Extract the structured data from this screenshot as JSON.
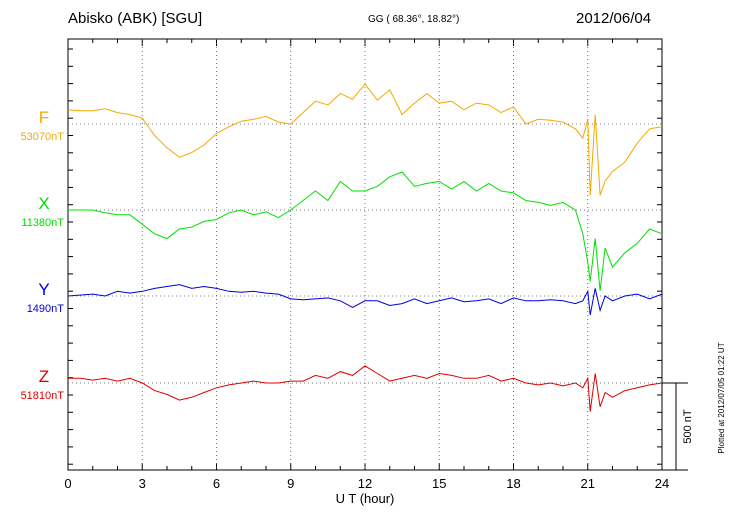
{
  "header": {
    "station": "Abisko (ABK)  [SGU]",
    "coords": "GG ( 68.36°,  18.82°)",
    "date": "2012/06/04"
  },
  "side_note": "Plotted at 2012/07/05 01:22 UT",
  "chart_data": {
    "type": "line",
    "xlabel": "U T (hour)",
    "xlim": [
      0,
      24
    ],
    "xticks": [
      0,
      3,
      6,
      9,
      12,
      15,
      18,
      21,
      24
    ],
    "scale_bar": {
      "label": "500 nT",
      "value_nT": 500
    },
    "series": [
      {
        "name": "F",
        "baseline_label": "53070nT",
        "color": "#f5a800",
        "points": [
          [
            0,
            15
          ],
          [
            0.5,
            14
          ],
          [
            1,
            14
          ],
          [
            1.5,
            16
          ],
          [
            2,
            12
          ],
          [
            2.5,
            10
          ],
          [
            3,
            6
          ],
          [
            3.5,
            -12
          ],
          [
            4,
            -25
          ],
          [
            4.5,
            -35
          ],
          [
            5,
            -30
          ],
          [
            5.5,
            -22
          ],
          [
            6,
            -10
          ],
          [
            6.5,
            -3
          ],
          [
            7,
            3
          ],
          [
            7.5,
            5
          ],
          [
            8,
            8
          ],
          [
            8.5,
            2
          ],
          [
            9,
            0
          ],
          [
            9.5,
            12
          ],
          [
            10,
            24
          ],
          [
            10.5,
            20
          ],
          [
            11,
            32
          ],
          [
            11.5,
            26
          ],
          [
            12,
            42
          ],
          [
            12.5,
            25
          ],
          [
            13,
            36
          ],
          [
            13.5,
            10
          ],
          [
            14,
            22
          ],
          [
            14.5,
            32
          ],
          [
            15,
            22
          ],
          [
            15.5,
            24
          ],
          [
            16,
            15
          ],
          [
            16.5,
            22
          ],
          [
            17,
            20
          ],
          [
            17.5,
            12
          ],
          [
            18,
            18
          ],
          [
            18.5,
            0
          ],
          [
            19,
            5
          ],
          [
            19.5,
            4
          ],
          [
            20,
            2
          ],
          [
            20.5,
            -5
          ],
          [
            20.8,
            -15
          ],
          [
            21,
            5
          ],
          [
            21.1,
            -75
          ],
          [
            21.3,
            10
          ],
          [
            21.5,
            -75
          ],
          [
            21.7,
            -60
          ],
          [
            22,
            -50
          ],
          [
            22.5,
            -40
          ],
          [
            23,
            -20
          ],
          [
            23.5,
            -5
          ],
          [
            24,
            -3
          ]
        ]
      },
      {
        "name": "X",
        "baseline_label": "11380nT",
        "color": "#00e000",
        "points": [
          [
            0,
            0
          ],
          [
            0.5,
            0
          ],
          [
            1,
            0
          ],
          [
            1.5,
            -3
          ],
          [
            2,
            -5
          ],
          [
            2.5,
            -5
          ],
          [
            3,
            -15
          ],
          [
            3.5,
            -25
          ],
          [
            4,
            -30
          ],
          [
            4.5,
            -20
          ],
          [
            5,
            -18
          ],
          [
            5.5,
            -12
          ],
          [
            6,
            -10
          ],
          [
            6.5,
            -3
          ],
          [
            7,
            0
          ],
          [
            7.5,
            -5
          ],
          [
            8,
            -2
          ],
          [
            8.5,
            -8
          ],
          [
            9,
            0
          ],
          [
            9.5,
            10
          ],
          [
            10,
            20
          ],
          [
            10.5,
            10
          ],
          [
            11,
            30
          ],
          [
            11.5,
            20
          ],
          [
            12,
            20
          ],
          [
            12.5,
            25
          ],
          [
            13,
            35
          ],
          [
            13.5,
            40
          ],
          [
            14,
            25
          ],
          [
            14.5,
            28
          ],
          [
            15,
            30
          ],
          [
            15.5,
            22
          ],
          [
            16,
            30
          ],
          [
            16.5,
            20
          ],
          [
            17,
            28
          ],
          [
            17.5,
            20
          ],
          [
            18,
            18
          ],
          [
            18.5,
            10
          ],
          [
            19,
            8
          ],
          [
            19.5,
            5
          ],
          [
            20,
            8
          ],
          [
            20.5,
            0
          ],
          [
            20.8,
            -25
          ],
          [
            21,
            -55
          ],
          [
            21.1,
            -75
          ],
          [
            21.3,
            -30
          ],
          [
            21.5,
            -85
          ],
          [
            21.7,
            -40
          ],
          [
            22,
            -60
          ],
          [
            22.5,
            -45
          ],
          [
            23,
            -35
          ],
          [
            23.5,
            -20
          ],
          [
            24,
            -25
          ]
        ]
      },
      {
        "name": "Y",
        "baseline_label": "1490nT",
        "color": "#0000dd",
        "points": [
          [
            0,
            0
          ],
          [
            1,
            2
          ],
          [
            1.5,
            0
          ],
          [
            2,
            5
          ],
          [
            2.5,
            3
          ],
          [
            3,
            5
          ],
          [
            3.5,
            8
          ],
          [
            4,
            10
          ],
          [
            4.5,
            12
          ],
          [
            5,
            8
          ],
          [
            5.5,
            10
          ],
          [
            6,
            8
          ],
          [
            6.5,
            5
          ],
          [
            7,
            4
          ],
          [
            7.5,
            5
          ],
          [
            8,
            3
          ],
          [
            8.5,
            2
          ],
          [
            9,
            -3
          ],
          [
            9.5,
            -4
          ],
          [
            10,
            -3
          ],
          [
            10.5,
            -2
          ],
          [
            11,
            -5
          ],
          [
            11.5,
            -12
          ],
          [
            12,
            -5
          ],
          [
            12.5,
            -5
          ],
          [
            13,
            -10
          ],
          [
            13.5,
            -8
          ],
          [
            14,
            -3
          ],
          [
            14.5,
            -8
          ],
          [
            15,
            -5
          ],
          [
            15.5,
            -2
          ],
          [
            16,
            -6
          ],
          [
            16.5,
            -5
          ],
          [
            17,
            -3
          ],
          [
            17.5,
            -8
          ],
          [
            18,
            -2
          ],
          [
            18.5,
            -5
          ],
          [
            19,
            -5
          ],
          [
            19.5,
            -4
          ],
          [
            20,
            -5
          ],
          [
            20.5,
            -8
          ],
          [
            20.8,
            -5
          ],
          [
            21,
            5
          ],
          [
            21.1,
            -20
          ],
          [
            21.3,
            8
          ],
          [
            21.5,
            -15
          ],
          [
            21.7,
            0
          ],
          [
            22,
            -5
          ],
          [
            22.5,
            0
          ],
          [
            23,
            2
          ],
          [
            23.5,
            -3
          ],
          [
            24,
            2
          ]
        ]
      },
      {
        "name": "Z",
        "baseline_label": "51810nT",
        "color": "#dd0000",
        "points": [
          [
            0,
            5
          ],
          [
            0.5,
            5
          ],
          [
            1,
            3
          ],
          [
            1.5,
            5
          ],
          [
            2,
            2
          ],
          [
            2.5,
            5
          ],
          [
            3,
            0
          ],
          [
            3.5,
            -8
          ],
          [
            4,
            -12
          ],
          [
            4.5,
            -18
          ],
          [
            5,
            -15
          ],
          [
            5.5,
            -10
          ],
          [
            6,
            -5
          ],
          [
            6.5,
            -2
          ],
          [
            7,
            0
          ],
          [
            7.5,
            2
          ],
          [
            8,
            0
          ],
          [
            8.5,
            0
          ],
          [
            9,
            2
          ],
          [
            9.5,
            2
          ],
          [
            10,
            8
          ],
          [
            10.5,
            5
          ],
          [
            11,
            12
          ],
          [
            11.5,
            8
          ],
          [
            12,
            18
          ],
          [
            12.5,
            10
          ],
          [
            13,
            2
          ],
          [
            13.5,
            5
          ],
          [
            14,
            8
          ],
          [
            14.5,
            5
          ],
          [
            15,
            10
          ],
          [
            15.5,
            8
          ],
          [
            16,
            5
          ],
          [
            16.5,
            5
          ],
          [
            17,
            8
          ],
          [
            17.5,
            2
          ],
          [
            18,
            5
          ],
          [
            18.5,
            0
          ],
          [
            19,
            -2
          ],
          [
            19.5,
            0
          ],
          [
            20,
            -3
          ],
          [
            20.5,
            0
          ],
          [
            20.8,
            -5
          ],
          [
            21,
            5
          ],
          [
            21.1,
            -30
          ],
          [
            21.3,
            10
          ],
          [
            21.5,
            -25
          ],
          [
            21.7,
            -10
          ],
          [
            22,
            -15
          ],
          [
            22.5,
            -8
          ],
          [
            23,
            -5
          ],
          [
            23.5,
            -2
          ],
          [
            24,
            0
          ]
        ]
      }
    ]
  }
}
